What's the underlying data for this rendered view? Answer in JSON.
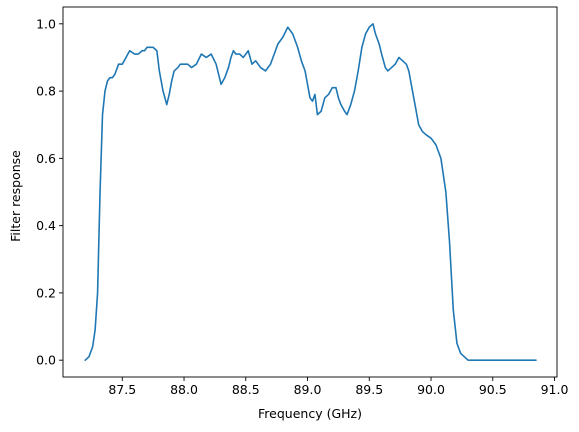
{
  "chart_data": {
    "type": "line",
    "title": "",
    "xlabel": "Frequency (GHz)",
    "ylabel": "Filter response",
    "xlim": [
      87.02,
      91.02
    ],
    "ylim": [
      -0.05,
      1.05
    ],
    "xticks": [
      87.5,
      88.0,
      88.5,
      89.0,
      89.5,
      90.0,
      90.5,
      91.0
    ],
    "xtick_labels": [
      "87.5",
      "88.0",
      "88.5",
      "89.0",
      "89.5",
      "90.0",
      "90.5",
      "91.0"
    ],
    "yticks": [
      0.0,
      0.2,
      0.4,
      0.6,
      0.8,
      1.0
    ],
    "ytick_labels": [
      "0.0",
      "0.2",
      "0.4",
      "0.6",
      "0.8",
      "1.0"
    ],
    "grid": false,
    "line_color": "#1f77b4",
    "series": [
      {
        "x": [
          87.2,
          87.23,
          87.26,
          87.28,
          87.3,
          87.32,
          87.34,
          87.36,
          87.38,
          87.4,
          87.42,
          87.44,
          87.47,
          87.5,
          87.53,
          87.56,
          87.6,
          87.63,
          87.66,
          87.68,
          87.7,
          87.72,
          87.75,
          87.78,
          87.8,
          87.83,
          87.86,
          87.88,
          87.9,
          87.92,
          87.95,
          87.97,
          88.0,
          88.03,
          88.06,
          88.1,
          88.14,
          88.18,
          88.22,
          88.26,
          88.3,
          88.33,
          88.36,
          88.38,
          88.4,
          88.42,
          88.45,
          88.48,
          88.52,
          88.55,
          88.58,
          88.62,
          88.66,
          88.7,
          88.73,
          88.76,
          88.8,
          88.84,
          88.88,
          88.92,
          88.95,
          88.98,
          89.0,
          89.02,
          89.04,
          89.06,
          89.08,
          89.11,
          89.14,
          89.17,
          89.2,
          89.23,
          89.25,
          89.27,
          89.3,
          89.32,
          89.35,
          89.38,
          89.41,
          89.44,
          89.47,
          89.5,
          89.53,
          89.55,
          89.58,
          89.6,
          89.63,
          89.65,
          89.68,
          89.71,
          89.74,
          89.77,
          89.8,
          89.82,
          89.84,
          89.86,
          89.88,
          89.9,
          89.93,
          89.96,
          90.0,
          90.04,
          90.08,
          90.12,
          90.15,
          90.18,
          90.21,
          90.24,
          90.27,
          90.3,
          90.33,
          90.36,
          90.39,
          90.42,
          90.45,
          90.5,
          90.54,
          90.57,
          90.6,
          90.62,
          90.64,
          90.66,
          90.68,
          90.7,
          90.72,
          90.74,
          90.76,
          90.78,
          90.8,
          90.83,
          90.85
        ],
        "y": [
          0.0,
          0.01,
          0.04,
          0.09,
          0.2,
          0.5,
          0.73,
          0.8,
          0.83,
          0.84,
          0.84,
          0.85,
          0.88,
          0.88,
          0.9,
          0.92,
          0.91,
          0.91,
          0.92,
          0.92,
          0.93,
          0.93,
          0.93,
          0.92,
          0.86,
          0.8,
          0.76,
          0.79,
          0.83,
          0.86,
          0.87,
          0.88,
          0.88,
          0.88,
          0.87,
          0.88,
          0.91,
          0.9,
          0.91,
          0.88,
          0.82,
          0.84,
          0.87,
          0.9,
          0.92,
          0.91,
          0.91,
          0.9,
          0.92,
          0.88,
          0.89,
          0.87,
          0.86,
          0.88,
          0.91,
          0.94,
          0.96,
          0.99,
          0.97,
          0.93,
          0.89,
          0.86,
          0.82,
          0.78,
          0.77,
          0.79,
          0.73,
          0.74,
          0.78,
          0.79,
          0.81,
          0.81,
          0.78,
          0.76,
          0.74,
          0.73,
          0.76,
          0.8,
          0.86,
          0.93,
          0.97,
          0.99,
          1.0,
          0.97,
          0.94,
          0.91,
          0.87,
          0.86,
          0.87,
          0.88,
          0.9,
          0.89,
          0.88,
          0.86,
          0.82,
          0.78,
          0.74,
          0.7,
          0.68,
          0.67,
          0.66,
          0.64,
          0.6,
          0.5,
          0.35,
          0.15,
          0.05,
          0.02,
          0.01,
          0.0,
          0.0,
          0.0,
          0.0,
          0.0,
          0.0,
          0.0,
          0.0,
          0.0,
          0.0,
          0.0,
          0.0,
          0.0,
          0.0,
          0.0,
          0.0,
          0.0,
          0.0,
          0.0,
          0.0,
          0.0,
          0.0
        ]
      }
    ]
  }
}
